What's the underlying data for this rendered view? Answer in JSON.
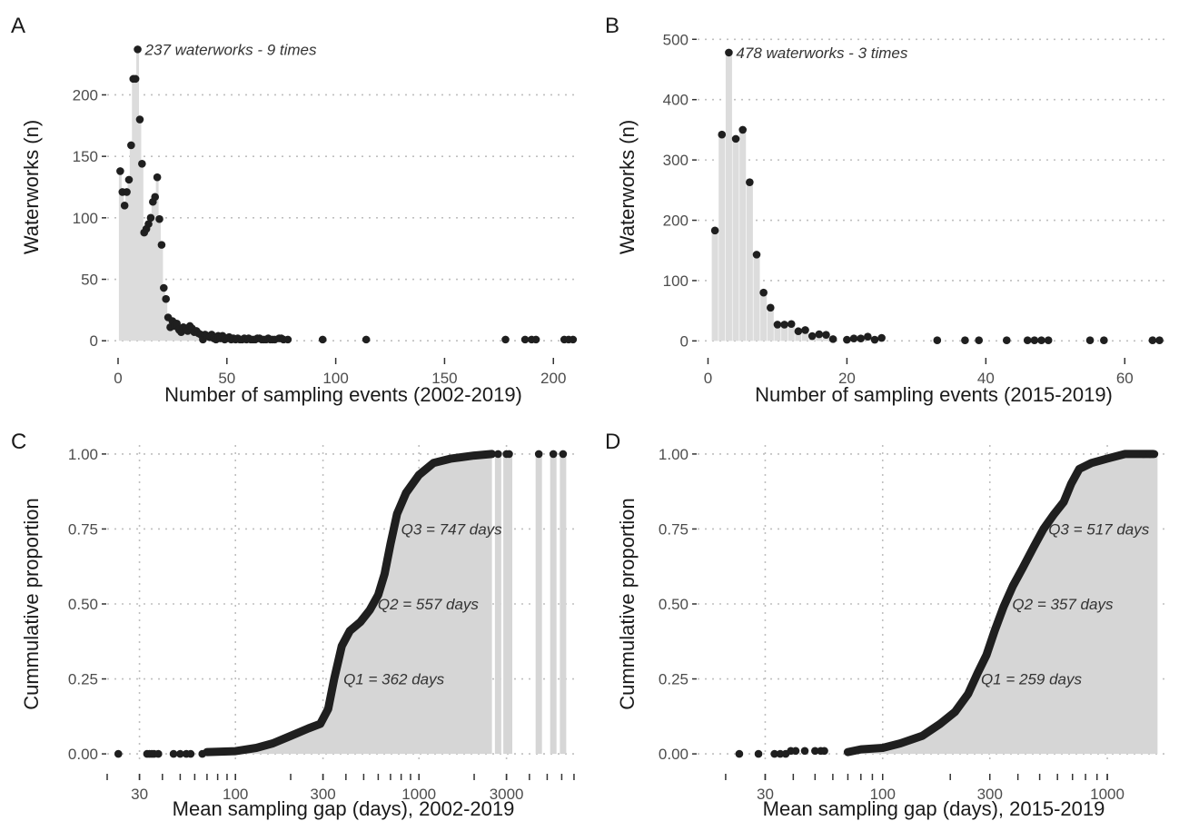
{
  "chart_data": [
    {
      "panel": "A",
      "type": "scatter",
      "xlabel": "Number of sampling events (2002-2019)",
      "ylabel": "Waterworks (n)",
      "xlim": [
        -5,
        212
      ],
      "ylim": [
        -5,
        255
      ],
      "xscale": "linear",
      "xticks": [
        0,
        50,
        100,
        150,
        200
      ],
      "yticks": [
        0,
        50,
        100,
        150,
        200
      ],
      "grid": "dotted horizontal",
      "annotation": {
        "text": "237 waterworks - 9 times",
        "x": 9,
        "y": 237
      },
      "points": [
        [
          1,
          138
        ],
        [
          2,
          121
        ],
        [
          3,
          110
        ],
        [
          4,
          121
        ],
        [
          5,
          131
        ],
        [
          6,
          159
        ],
        [
          7,
          213
        ],
        [
          8,
          213
        ],
        [
          9,
          237
        ],
        [
          10,
          180
        ],
        [
          11,
          144
        ],
        [
          12,
          88
        ],
        [
          13,
          91
        ],
        [
          14,
          95
        ],
        [
          15,
          100
        ],
        [
          16,
          113
        ],
        [
          17,
          117
        ],
        [
          18,
          133
        ],
        [
          19,
          99
        ],
        [
          20,
          78
        ],
        [
          21,
          43
        ],
        [
          22,
          34
        ],
        [
          23,
          19
        ],
        [
          24,
          11
        ],
        [
          25,
          16
        ],
        [
          26,
          12
        ],
        [
          27,
          14
        ],
        [
          28,
          9
        ],
        [
          29,
          7
        ],
        [
          30,
          11
        ],
        [
          31,
          9
        ],
        [
          32,
          8
        ],
        [
          33,
          12
        ],
        [
          34,
          10
        ],
        [
          35,
          7
        ],
        [
          36,
          8
        ],
        [
          37,
          6
        ],
        [
          38,
          5
        ],
        [
          39,
          1
        ],
        [
          40,
          5
        ],
        [
          41,
          4
        ],
        [
          42,
          3
        ],
        [
          43,
          5
        ],
        [
          44,
          2
        ],
        [
          45,
          1
        ],
        [
          46,
          4
        ],
        [
          47,
          2
        ],
        [
          48,
          4
        ],
        [
          49,
          1
        ],
        [
          50,
          2
        ],
        [
          51,
          3
        ],
        [
          52,
          1
        ],
        [
          53,
          2
        ],
        [
          54,
          1
        ],
        [
          55,
          2
        ],
        [
          56,
          1
        ],
        [
          57,
          1
        ],
        [
          58,
          2
        ],
        [
          59,
          1
        ],
        [
          60,
          2
        ],
        [
          61,
          1
        ],
        [
          62,
          1
        ],
        [
          63,
          1
        ],
        [
          64,
          2
        ],
        [
          65,
          2
        ],
        [
          66,
          1
        ],
        [
          67,
          1
        ],
        [
          68,
          1
        ],
        [
          69,
          2
        ],
        [
          70,
          1
        ],
        [
          71,
          1
        ],
        [
          72,
          1
        ],
        [
          74,
          2
        ],
        [
          75,
          2
        ],
        [
          76,
          1
        ],
        [
          78,
          1
        ],
        [
          94,
          1
        ],
        [
          114,
          1
        ],
        [
          178,
          1
        ],
        [
          187,
          1
        ],
        [
          190,
          1
        ],
        [
          192,
          1
        ],
        [
          205,
          1
        ],
        [
          207,
          1
        ],
        [
          209,
          1
        ]
      ]
    },
    {
      "panel": "B",
      "type": "scatter",
      "xlabel": "Number of sampling events (2015-2019)",
      "ylabel": "Waterworks (n)",
      "xlim": [
        -1.5,
        66.5
      ],
      "ylim": [
        -10,
        520
      ],
      "xscale": "linear",
      "xticks": [
        0,
        20,
        40,
        60
      ],
      "yticks": [
        0,
        100,
        200,
        300,
        400,
        500
      ],
      "grid": "dotted horizontal",
      "annotation": {
        "text": "478 waterworks - 3 times",
        "x": 3,
        "y": 478
      },
      "points": [
        [
          1,
          183
        ],
        [
          2,
          342
        ],
        [
          3,
          478
        ],
        [
          4,
          335
        ],
        [
          5,
          350
        ],
        [
          6,
          263
        ],
        [
          7,
          143
        ],
        [
          8,
          80
        ],
        [
          9,
          55
        ],
        [
          10,
          27
        ],
        [
          11,
          27
        ],
        [
          12,
          28
        ],
        [
          13,
          16
        ],
        [
          14,
          18
        ],
        [
          15,
          8
        ],
        [
          16,
          11
        ],
        [
          17,
          10
        ],
        [
          18,
          3
        ],
        [
          20,
          2
        ],
        [
          21,
          4
        ],
        [
          22,
          4
        ],
        [
          23,
          7
        ],
        [
          24,
          2
        ],
        [
          25,
          5
        ],
        [
          33,
          1
        ],
        [
          37,
          1
        ],
        [
          39,
          1
        ],
        [
          43,
          1
        ],
        [
          46,
          1
        ],
        [
          47,
          1
        ],
        [
          48,
          1
        ],
        [
          49,
          1
        ],
        [
          55,
          1
        ],
        [
          57,
          1
        ],
        [
          64,
          1
        ],
        [
          65,
          1
        ]
      ]
    },
    {
      "panel": "C",
      "type": "area",
      "xlabel": "Mean sampling gap (days), 2002-2019",
      "ylabel": "Cummulative proportion",
      "xscale": "log10",
      "xlim": [
        20,
        7500
      ],
      "ylim": [
        -0.03,
        1.03
      ],
      "xticks": [
        30,
        100,
        300,
        1000,
        3000
      ],
      "yticks": [
        0,
        0.25,
        0.5,
        0.75,
        1.0
      ],
      "ytick_labels": [
        "0.00",
        "0.25",
        "0.50",
        "0.75",
        "1.00"
      ],
      "grid": "dotted",
      "annotations": [
        {
          "text": "Q1 = 362 days",
          "x": 362,
          "y": 0.25
        },
        {
          "text": "Q2 = 557 days",
          "x": 557,
          "y": 0.5
        },
        {
          "text": "Q3 = 747 days",
          "x": 747,
          "y": 0.75
        }
      ],
      "curve": [
        [
          70,
          0.006
        ],
        [
          100,
          0.009
        ],
        [
          130,
          0.02
        ],
        [
          160,
          0.035
        ],
        [
          200,
          0.06
        ],
        [
          250,
          0.085
        ],
        [
          290,
          0.1
        ],
        [
          320,
          0.15
        ],
        [
          345,
          0.25
        ],
        [
          380,
          0.36
        ],
        [
          420,
          0.41
        ],
        [
          480,
          0.44
        ],
        [
          540,
          0.48
        ],
        [
          600,
          0.53
        ],
        [
          650,
          0.6
        ],
        [
          700,
          0.7
        ],
        [
          760,
          0.8
        ],
        [
          850,
          0.87
        ],
        [
          1000,
          0.93
        ],
        [
          1200,
          0.97
        ],
        [
          1500,
          0.985
        ],
        [
          2000,
          0.995
        ],
        [
          2500,
          1.0
        ]
      ],
      "isolated_points": [
        [
          23,
          0
        ],
        [
          33,
          0
        ],
        [
          34,
          0
        ],
        [
          35,
          0
        ],
        [
          36,
          0
        ],
        [
          38,
          0
        ],
        [
          46,
          0
        ],
        [
          50,
          0
        ],
        [
          54,
          0
        ],
        [
          57,
          0
        ],
        [
          66,
          0
        ],
        [
          2700,
          1
        ],
        [
          3000,
          1
        ],
        [
          3100,
          1
        ],
        [
          4500,
          1
        ],
        [
          5400,
          1
        ],
        [
          6100,
          1
        ]
      ]
    },
    {
      "panel": "D",
      "type": "area",
      "xlabel": "Mean sampling gap (days), 2015-2019",
      "ylabel": "Cummulative proportion",
      "xscale": "log10",
      "xlim": [
        15,
        1900
      ],
      "ylim": [
        -0.03,
        1.03
      ],
      "xticks": [
        30,
        100,
        300,
        1000
      ],
      "yticks": [
        0,
        0.25,
        0.5,
        0.75,
        1.0
      ],
      "ytick_labels": [
        "0.00",
        "0.25",
        "0.50",
        "0.75",
        "1.00"
      ],
      "grid": "dotted",
      "annotations": [
        {
          "text": "Q1 = 259 days",
          "x": 259,
          "y": 0.25
        },
        {
          "text": "Q2 = 357 days",
          "x": 357,
          "y": 0.5
        },
        {
          "text": "Q3 = 517 days",
          "x": 517,
          "y": 0.75
        }
      ],
      "curve": [
        [
          70,
          0.006
        ],
        [
          80,
          0.015
        ],
        [
          100,
          0.02
        ],
        [
          120,
          0.035
        ],
        [
          150,
          0.06
        ],
        [
          180,
          0.1
        ],
        [
          210,
          0.14
        ],
        [
          240,
          0.2
        ],
        [
          265,
          0.27
        ],
        [
          290,
          0.33
        ],
        [
          315,
          0.41
        ],
        [
          345,
          0.49
        ],
        [
          380,
          0.56
        ],
        [
          420,
          0.62
        ],
        [
          470,
          0.69
        ],
        [
          520,
          0.75
        ],
        [
          580,
          0.8
        ],
        [
          640,
          0.84
        ],
        [
          690,
          0.9
        ],
        [
          750,
          0.95
        ],
        [
          850,
          0.97
        ],
        [
          1000,
          0.985
        ],
        [
          1200,
          1.0
        ],
        [
          1600,
          1.0
        ]
      ],
      "isolated_points": [
        [
          23,
          0
        ],
        [
          28,
          0
        ],
        [
          33,
          0
        ],
        [
          35,
          0
        ],
        [
          37,
          0
        ],
        [
          39,
          0.01
        ],
        [
          41,
          0.01
        ],
        [
          45,
          0.01
        ],
        [
          50,
          0.01
        ],
        [
          53,
          0.01
        ],
        [
          55,
          0.01
        ],
        [
          1450,
          1
        ],
        [
          1550,
          1
        ],
        [
          1620,
          1
        ]
      ]
    }
  ],
  "labels": {
    "a": "A",
    "b": "B",
    "c": "C",
    "d": "D"
  }
}
